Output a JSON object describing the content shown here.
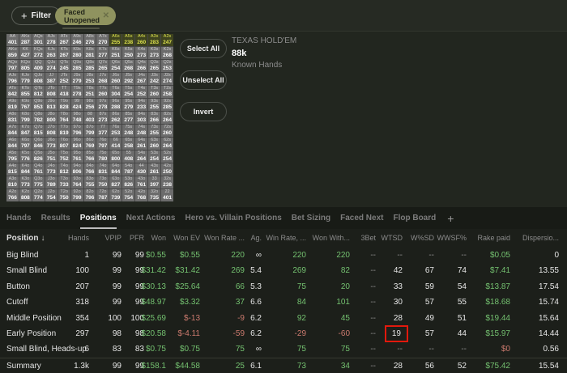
{
  "colors": {
    "chip_bg": "#8f935f",
    "highlight_yellow": "#dde24d",
    "green": "#74c170",
    "red": "#cb7a6e",
    "red_box": "#e2190d"
  },
  "filter_bar": {
    "filter_label": "Filter",
    "chip_label": "Faced Unopened"
  },
  "actions": {
    "select_all": "Select All",
    "unselect_all": "Unselect All",
    "invert": "Invert"
  },
  "game_info": {
    "title": "TEXAS HOLD'EM",
    "hands_count": "88k",
    "subtitle": "Known Hands"
  },
  "hand_grid": {
    "rows": [
      [
        [
          "AA",
          401
        ],
        [
          "AKs",
          287
        ],
        [
          "AQs",
          301
        ],
        [
          "AJs",
          278
        ],
        [
          "ATs",
          267
        ],
        [
          "A9s",
          246
        ],
        [
          "A8s",
          276
        ],
        [
          "A7s",
          270
        ],
        [
          "A6s",
          255,
          1
        ],
        [
          "A5s",
          238,
          1
        ],
        [
          "A4s",
          260,
          1
        ],
        [
          "A3s",
          283,
          1
        ],
        [
          "A2s",
          247,
          1
        ]
      ],
      [
        [
          "AKo",
          859
        ],
        [
          "KK",
          427
        ],
        [
          "KQs",
          272
        ],
        [
          "KJs",
          263
        ],
        [
          "KTs",
          267
        ],
        [
          "K9s",
          280
        ],
        [
          "K8s",
          281
        ],
        [
          "K7s",
          277
        ],
        [
          "K6s",
          251
        ],
        [
          "K5s",
          250
        ],
        [
          "K4s",
          273
        ],
        [
          "K3s",
          273
        ],
        [
          "K2s",
          268
        ]
      ],
      [
        [
          "AQo",
          797
        ],
        [
          "KQo",
          805
        ],
        [
          "QQ",
          409
        ],
        [
          "QJs",
          274
        ],
        [
          "QTs",
          245
        ],
        [
          "Q9s",
          285
        ],
        [
          "Q8s",
          285
        ],
        [
          "Q7s",
          265
        ],
        [
          "Q6s",
          254
        ],
        [
          "Q5s",
          268
        ],
        [
          "Q4s",
          266
        ],
        [
          "Q3s",
          265
        ],
        [
          "Q2s",
          253
        ]
      ],
      [
        [
          "AJo",
          796
        ],
        [
          "KJo",
          779
        ],
        [
          "QJo",
          808
        ],
        [
          "JJ",
          387
        ],
        [
          "JTs",
          252
        ],
        [
          "J9s",
          279
        ],
        [
          "J8s",
          253
        ],
        [
          "J7s",
          268
        ],
        [
          "J6s",
          260
        ],
        [
          "J5s",
          292
        ],
        [
          "J4s",
          267
        ],
        [
          "J3s",
          242
        ],
        [
          "J2s",
          274
        ]
      ],
      [
        [
          "ATo",
          842
        ],
        [
          "KTo",
          855
        ],
        [
          "QTo",
          812
        ],
        [
          "JTo",
          808
        ],
        [
          "TT",
          418
        ],
        [
          "T9s",
          278
        ],
        [
          "T8s",
          251
        ],
        [
          "T7s",
          260
        ],
        [
          "T6s",
          304
        ],
        [
          "T5s",
          254
        ],
        [
          "T4s",
          252
        ],
        [
          "T3s",
          260
        ],
        [
          "T2s",
          258
        ]
      ],
      [
        [
          "A9o",
          819
        ],
        [
          "K9o",
          767
        ],
        [
          "Q9o",
          853
        ],
        [
          "J9o",
          813
        ],
        [
          "T9o",
          828
        ],
        [
          "99",
          424
        ],
        [
          "98s",
          256
        ],
        [
          "97s",
          278
        ],
        [
          "96s",
          288
        ],
        [
          "95s",
          279
        ],
        [
          "94s",
          233
        ],
        [
          "93s",
          255
        ],
        [
          "92s",
          285
        ]
      ],
      [
        [
          "A8o",
          831
        ],
        [
          "K8o",
          799
        ],
        [
          "Q8o",
          782
        ],
        [
          "J8o",
          800
        ],
        [
          "T8o",
          764
        ],
        [
          "98o",
          748
        ],
        [
          "88",
          403
        ],
        [
          "87s",
          273
        ],
        [
          "86s",
          262
        ],
        [
          "85s",
          277
        ],
        [
          "84s",
          303
        ],
        [
          "83s",
          266
        ],
        [
          "82s",
          264
        ]
      ],
      [
        [
          "A7o",
          844
        ],
        [
          "K7o",
          847
        ],
        [
          "Q7o",
          815
        ],
        [
          "J7o",
          808
        ],
        [
          "T7o",
          819
        ],
        [
          "97o",
          796
        ],
        [
          "87o",
          799
        ],
        [
          "77",
          377
        ],
        [
          "76s",
          253
        ],
        [
          "75s",
          248
        ],
        [
          "74s",
          248
        ],
        [
          "73s",
          255
        ],
        [
          "72s",
          260
        ]
      ],
      [
        [
          "A6o",
          844
        ],
        [
          "K6o",
          797
        ],
        [
          "Q6o",
          846
        ],
        [
          "J6o",
          773
        ],
        [
          "T6o",
          807
        ],
        [
          "96o",
          824
        ],
        [
          "86o",
          769
        ],
        [
          "76o",
          797
        ],
        [
          "66",
          414
        ],
        [
          "65s",
          258
        ],
        [
          "64s",
          261
        ],
        [
          "63s",
          260
        ],
        [
          "62s",
          264
        ]
      ],
      [
        [
          "A5o",
          795
        ],
        [
          "K5o",
          776
        ],
        [
          "Q5o",
          826
        ],
        [
          "J5o",
          751
        ],
        [
          "T5o",
          752
        ],
        [
          "95o",
          761
        ],
        [
          "85o",
          766
        ],
        [
          "75o",
          780
        ],
        [
          "65o",
          800
        ],
        [
          "55",
          408
        ],
        [
          "54s",
          264
        ],
        [
          "53s",
          254
        ],
        [
          "52s",
          254
        ]
      ],
      [
        [
          "A4o",
          815
        ],
        [
          "K4o",
          844
        ],
        [
          "Q4o",
          761
        ],
        [
          "J4o",
          773
        ],
        [
          "T4o",
          812
        ],
        [
          "94o",
          806
        ],
        [
          "84o",
          766
        ],
        [
          "74o",
          831
        ],
        [
          "64o",
          844
        ],
        [
          "54o",
          787
        ],
        [
          "44",
          430
        ],
        [
          "43s",
          261
        ],
        [
          "42s",
          250
        ]
      ],
      [
        [
          "A3o",
          810
        ],
        [
          "K3o",
          773
        ],
        [
          "Q3o",
          775
        ],
        [
          "J3o",
          789
        ],
        [
          "T3o",
          733
        ],
        [
          "93o",
          764
        ],
        [
          "83o",
          755
        ],
        [
          "73o",
          750
        ],
        [
          "63o",
          827
        ],
        [
          "53o",
          826
        ],
        [
          "43o",
          761
        ],
        [
          "33",
          397
        ],
        [
          "32s",
          238
        ]
      ],
      [
        [
          "A2o",
          766
        ],
        [
          "K2o",
          808
        ],
        [
          "Q2o",
          774
        ],
        [
          "J2o",
          754
        ],
        [
          "T2o",
          750
        ],
        [
          "92o",
          799
        ],
        [
          "82o",
          796
        ],
        [
          "72o",
          787
        ],
        [
          "62o",
          739
        ],
        [
          "52o",
          754
        ],
        [
          "42o",
          768
        ],
        [
          "32o",
          735
        ],
        [
          "22",
          401
        ]
      ]
    ]
  },
  "tabs": [
    {
      "label": "Hands"
    },
    {
      "label": "Results"
    },
    {
      "label": "Positions",
      "active": true
    },
    {
      "label": "Next Actions"
    },
    {
      "label": "Hero vs. Villain Positions"
    },
    {
      "label": "Bet Sizing"
    },
    {
      "label": "Faced Next"
    },
    {
      "label": "Flop Board"
    },
    {
      "label": "+",
      "add": true
    }
  ],
  "table": {
    "sort_indicator": "↓",
    "columns": [
      "Position",
      "Hands",
      "VPIP",
      "PFR",
      "Won",
      "Won EV",
      "Won Rate ...",
      "Ag.",
      "Win Rate, ...",
      "Won With...",
      "3Bet",
      "WTSD",
      "W%SD",
      "WWSF%",
      "Rake paid",
      "Dispersio..."
    ],
    "rows": [
      {
        "label": "Big Blind",
        "cells": [
          {
            "v": "1"
          },
          {
            "v": "99"
          },
          {
            "v": "99"
          },
          {
            "v": "$0.55",
            "c": "g"
          },
          {
            "v": "$0.55",
            "c": "g"
          },
          {
            "v": "220",
            "c": "g"
          },
          {
            "v": "∞"
          },
          {
            "v": "220",
            "c": "g"
          },
          {
            "v": "220",
            "c": "g"
          },
          {
            "v": "--",
            "c": "m"
          },
          {
            "v": "--",
            "c": "m"
          },
          {
            "v": "--",
            "c": "m"
          },
          {
            "v": "--",
            "c": "m"
          },
          {
            "v": "$0.05",
            "c": "g"
          },
          {
            "v": "0"
          }
        ]
      },
      {
        "label": "Small Blind",
        "cells": [
          {
            "v": "100"
          },
          {
            "v": "99"
          },
          {
            "v": "99"
          },
          {
            "v": "$31.42",
            "c": "g"
          },
          {
            "v": "$31.42",
            "c": "g"
          },
          {
            "v": "269",
            "c": "g"
          },
          {
            "v": "5.4"
          },
          {
            "v": "269",
            "c": "g"
          },
          {
            "v": "82",
            "c": "g"
          },
          {
            "v": "--",
            "c": "m"
          },
          {
            "v": "42"
          },
          {
            "v": "67"
          },
          {
            "v": "74"
          },
          {
            "v": "$7.41",
            "c": "g"
          },
          {
            "v": "13.55"
          }
        ]
      },
      {
        "label": "Button",
        "cells": [
          {
            "v": "207"
          },
          {
            "v": "99"
          },
          {
            "v": "99"
          },
          {
            "v": "$30.13",
            "c": "g"
          },
          {
            "v": "$25.64",
            "c": "g"
          },
          {
            "v": "66",
            "c": "g"
          },
          {
            "v": "5.3"
          },
          {
            "v": "75",
            "c": "g"
          },
          {
            "v": "20",
            "c": "g"
          },
          {
            "v": "--",
            "c": "m"
          },
          {
            "v": "33"
          },
          {
            "v": "59"
          },
          {
            "v": "54"
          },
          {
            "v": "$13.87",
            "c": "g"
          },
          {
            "v": "17.54"
          }
        ]
      },
      {
        "label": "Cutoff",
        "cells": [
          {
            "v": "318"
          },
          {
            "v": "99"
          },
          {
            "v": "99"
          },
          {
            "v": "$48.97",
            "c": "g"
          },
          {
            "v": "$3.32",
            "c": "g"
          },
          {
            "v": "37",
            "c": "g"
          },
          {
            "v": "6.6"
          },
          {
            "v": "84",
            "c": "g"
          },
          {
            "v": "101",
            "c": "g"
          },
          {
            "v": "--",
            "c": "m"
          },
          {
            "v": "30"
          },
          {
            "v": "57"
          },
          {
            "v": "55"
          },
          {
            "v": "$18.68",
            "c": "g"
          },
          {
            "v": "15.74"
          }
        ]
      },
      {
        "label": "Middle Position",
        "cells": [
          {
            "v": "354"
          },
          {
            "v": "100"
          },
          {
            "v": "100"
          },
          {
            "v": "$25.69",
            "c": "g"
          },
          {
            "v": "$-13",
            "c": "r"
          },
          {
            "v": "-9",
            "c": "r"
          },
          {
            "v": "6.2"
          },
          {
            "v": "92",
            "c": "g"
          },
          {
            "v": "45",
            "c": "g"
          },
          {
            "v": "--",
            "c": "m"
          },
          {
            "v": "28"
          },
          {
            "v": "49"
          },
          {
            "v": "51"
          },
          {
            "v": "$19.44",
            "c": "g"
          },
          {
            "v": "15.64"
          }
        ]
      },
      {
        "label": "Early Position",
        "cells": [
          {
            "v": "297"
          },
          {
            "v": "98"
          },
          {
            "v": "98"
          },
          {
            "v": "$20.58",
            "c": "g"
          },
          {
            "v": "$-4.11",
            "c": "r"
          },
          {
            "v": "-59",
            "c": "r"
          },
          {
            "v": "6.2"
          },
          {
            "v": "-29",
            "c": "r"
          },
          {
            "v": "-60",
            "c": "r"
          },
          {
            "v": "--",
            "c": "m"
          },
          {
            "v": "19",
            "b": true
          },
          {
            "v": "57"
          },
          {
            "v": "44"
          },
          {
            "v": "$15.97",
            "c": "g"
          },
          {
            "v": "14.44"
          }
        ]
      },
      {
        "label": "Small Blind, Heads-up",
        "cells": [
          {
            "v": "6"
          },
          {
            "v": "83"
          },
          {
            "v": "83"
          },
          {
            "v": "$0.75",
            "c": "g"
          },
          {
            "v": "$0.75",
            "c": "g"
          },
          {
            "v": "75",
            "c": "g"
          },
          {
            "v": "∞"
          },
          {
            "v": "75",
            "c": "g"
          },
          {
            "v": "75",
            "c": "g"
          },
          {
            "v": "--",
            "c": "m"
          },
          {
            "v": "--",
            "c": "m"
          },
          {
            "v": "--",
            "c": "m"
          },
          {
            "v": "--",
            "c": "m"
          },
          {
            "v": "$0",
            "c": "r"
          },
          {
            "v": "0.56"
          }
        ]
      },
      {
        "label": "Summary",
        "summary": true,
        "cells": [
          {
            "v": "1.3k"
          },
          {
            "v": "99"
          },
          {
            "v": "99"
          },
          {
            "v": "$158.1",
            "c": "g"
          },
          {
            "v": "$44.58",
            "c": "g"
          },
          {
            "v": "25",
            "c": "g"
          },
          {
            "v": "6.1"
          },
          {
            "v": "73",
            "c": "g"
          },
          {
            "v": "34",
            "c": "g"
          },
          {
            "v": "--",
            "c": "m"
          },
          {
            "v": "28"
          },
          {
            "v": "56"
          },
          {
            "v": "52"
          },
          {
            "v": "$75.42",
            "c": "g"
          },
          {
            "v": "15.54"
          }
        ]
      }
    ]
  }
}
